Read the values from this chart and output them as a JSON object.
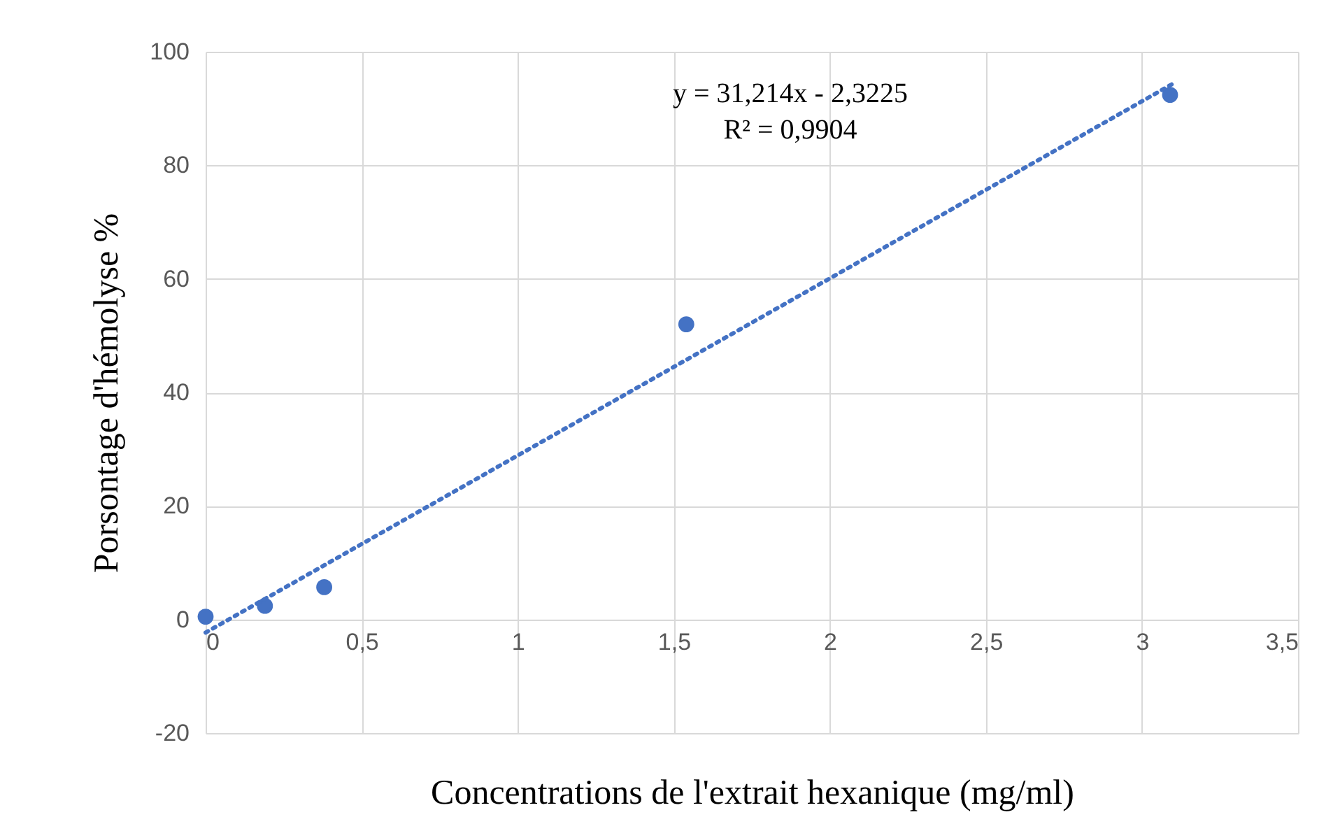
{
  "chart_data": {
    "type": "scatter",
    "xlabel": "Concentrations de l'extrait hexanique (mg/ml)",
    "ylabel": "Porsontage d'hémolyse %",
    "x": [
      0,
      0.19,
      0.38,
      1.54,
      3.09
    ],
    "series": [
      {
        "color": "#4472c4",
        "marker": "circle",
        "values": [
          0.5,
          2.4,
          5.7,
          52,
          92.4
        ]
      },
      {
        "type": "line",
        "color": "#4472c4",
        "line_style": "dotted",
        "x": [
          0,
          3.1
        ],
        "values": [
          -2.3,
          94.4
        ]
      }
    ],
    "grid": true,
    "xlim": [
      0,
      3.5
    ],
    "xticks": [
      0,
      {
        "value": 0.5,
        "label": "0,5"
      },
      1,
      {
        "value": 1.5,
        "label": "1,5"
      },
      2,
      {
        "value": 2.5,
        "label": "2,5"
      },
      3,
      {
        "value": 3.5,
        "label": "3,5"
      }
    ],
    "ylim": [
      -20,
      100
    ],
    "yticks": [
      -20,
      0,
      20,
      40,
      60,
      80,
      100
    ],
    "annotations": [
      "y = 31,214x - 2,3225",
      "R² = 0,9904"
    ]
  }
}
